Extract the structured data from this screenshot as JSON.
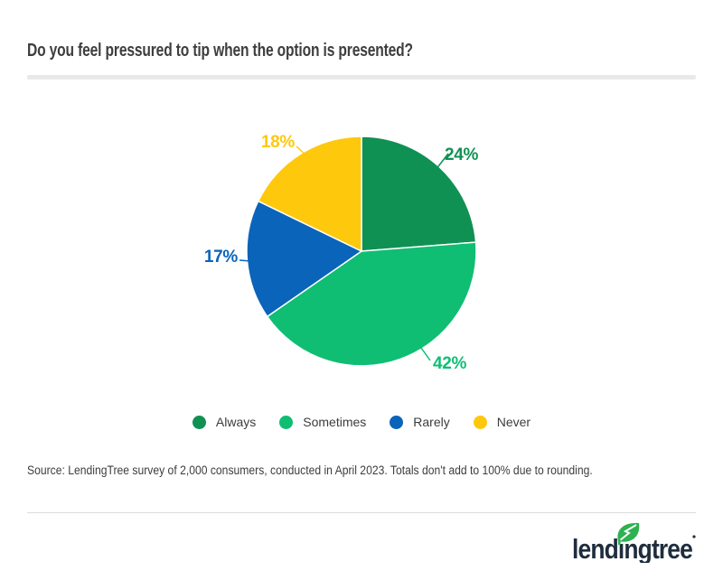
{
  "title": "Do you feel pressured to tip when the option is presented?",
  "chart_data": {
    "type": "pie",
    "title": "Do you feel pressured to tip when the option is presented?",
    "categories": [
      "Always",
      "Sometimes",
      "Rarely",
      "Never"
    ],
    "values": [
      24,
      42,
      17,
      18
    ],
    "unit": "percent",
    "data_labels": [
      "24%",
      "42%",
      "17%",
      "18%"
    ],
    "colors": [
      "#0f9154",
      "#0fbe73",
      "#0a64ba",
      "#fec80d"
    ],
    "start_angle_deg": -90,
    "direction": "clockwise",
    "legend_position": "bottom"
  },
  "legend": {
    "items": [
      {
        "label": "Always",
        "color": "#0f9154"
      },
      {
        "label": "Sometimes",
        "color": "#0fbe73"
      },
      {
        "label": "Rarely",
        "color": "#0a64ba"
      },
      {
        "label": "Never",
        "color": "#fec80d"
      }
    ]
  },
  "source_text": "Source: LendingTree survey of 2,000 consumers, conducted in April 2023. Totals don't add to 100% due to rounding.",
  "footer": {
    "logo_text": "lendingtree",
    "logo_mark": "leaf-icon"
  },
  "colors": {
    "title_text": "#3e3e3e",
    "body_text": "#3d3d3d",
    "divider_bar": "#e9e9e9",
    "divider_line": "#dcdcdc",
    "logo_navy": "#1f2d3d",
    "leaf_green": "#2db151",
    "background": "#ffffff"
  }
}
